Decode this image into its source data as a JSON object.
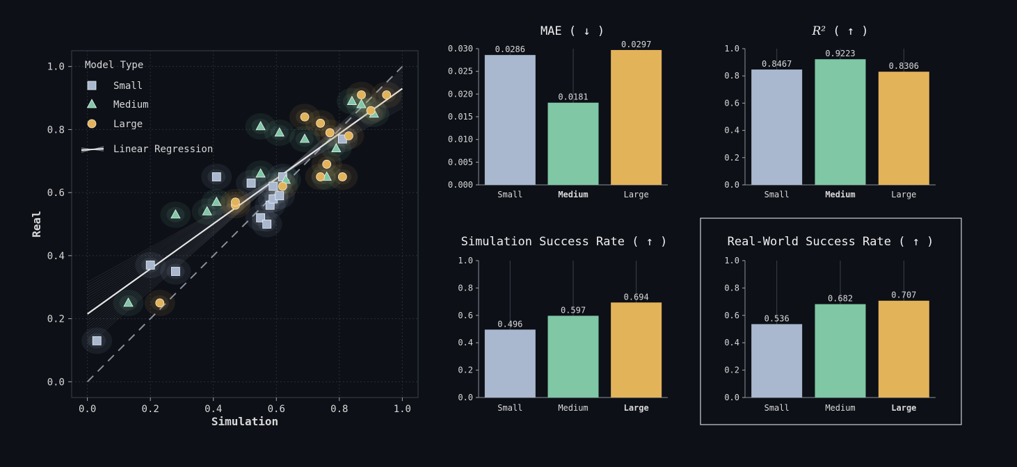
{
  "chart_data": [
    {
      "type": "scatter",
      "xlabel": "Simulation",
      "ylabel": "Real",
      "xlim": [
        -0.05,
        1.05
      ],
      "ylim": [
        -0.05,
        1.05
      ],
      "xticks": [
        "0.0",
        "0.2",
        "0.4",
        "0.6",
        "0.8",
        "1.0"
      ],
      "yticks": [
        "0.0",
        "0.2",
        "0.4",
        "0.6",
        "0.8",
        "1.0"
      ],
      "grid": true,
      "legend_title": "Model Type",
      "legend_position": "top-left",
      "legend": [
        "Small",
        "Medium",
        "Large",
        "Linear Regression"
      ],
      "colors": {
        "Small": "#a9b8cf",
        "Medium": "#7fc7a5",
        "Large": "#e3b35a",
        "line": "#e6e6e6",
        "diagonal": "#8a8f99"
      },
      "series": [
        {
          "name": "Small",
          "marker": "square",
          "points": [
            [
              0.03,
              0.13
            ],
            [
              0.2,
              0.37
            ],
            [
              0.28,
              0.35
            ],
            [
              0.41,
              0.65
            ],
            [
              0.52,
              0.63
            ],
            [
              0.55,
              0.52
            ],
            [
              0.57,
              0.5
            ],
            [
              0.58,
              0.56
            ],
            [
              0.59,
              0.58
            ],
            [
              0.59,
              0.62
            ],
            [
              0.61,
              0.59
            ],
            [
              0.62,
              0.65
            ],
            [
              0.81,
              0.77
            ]
          ]
        },
        {
          "name": "Medium",
          "marker": "triangle",
          "points": [
            [
              0.13,
              0.25
            ],
            [
              0.28,
              0.53
            ],
            [
              0.38,
              0.54
            ],
            [
              0.41,
              0.57
            ],
            [
              0.55,
              0.66
            ],
            [
              0.55,
              0.81
            ],
            [
              0.61,
              0.79
            ],
            [
              0.63,
              0.64
            ],
            [
              0.69,
              0.77
            ],
            [
              0.76,
              0.65
            ],
            [
              0.79,
              0.74
            ],
            [
              0.84,
              0.89
            ],
            [
              0.87,
              0.88
            ],
            [
              0.91,
              0.85
            ]
          ]
        },
        {
          "name": "Large",
          "marker": "circle",
          "points": [
            [
              0.23,
              0.25
            ],
            [
              0.47,
              0.56
            ],
            [
              0.47,
              0.57
            ],
            [
              0.62,
              0.62
            ],
            [
              0.69,
              0.84
            ],
            [
              0.74,
              0.65
            ],
            [
              0.74,
              0.82
            ],
            [
              0.76,
              0.69
            ],
            [
              0.77,
              0.79
            ],
            [
              0.81,
              0.65
            ],
            [
              0.83,
              0.78
            ],
            [
              0.87,
              0.91
            ],
            [
              0.9,
              0.86
            ],
            [
              0.95,
              0.91
            ]
          ]
        }
      ],
      "regression": {
        "x": [
          0.0,
          1.0
        ],
        "y": [
          0.215,
          0.93
        ]
      }
    },
    {
      "type": "bar",
      "title": "MAE ( ↓ )",
      "categories": [
        "Small",
        "Medium",
        "Large"
      ],
      "values": [
        0.0286,
        0.0181,
        0.0297
      ],
      "labels": [
        "0.0286",
        "0.0181",
        "0.0297"
      ],
      "highlight": "Medium",
      "ylim": [
        0,
        0.03
      ],
      "yticks": [
        "0.000",
        "0.005",
        "0.010",
        "0.015",
        "0.020",
        "0.025",
        "0.030"
      ]
    },
    {
      "type": "bar",
      "title": "R² ( ↑ )",
      "categories": [
        "Small",
        "Medium",
        "Large"
      ],
      "values": [
        0.8467,
        0.9223,
        0.8306
      ],
      "labels": [
        "0.8467",
        "0.9223",
        "0.8306"
      ],
      "highlight": "Medium",
      "ylim": [
        0,
        1.0
      ],
      "yticks": [
        "0.0",
        "0.2",
        "0.4",
        "0.6",
        "0.8",
        "1.0"
      ]
    },
    {
      "type": "bar",
      "title": "Simulation Success Rate ( ↑ )",
      "categories": [
        "Small",
        "Medium",
        "Large"
      ],
      "values": [
        0.496,
        0.597,
        0.694
      ],
      "labels": [
        "0.496",
        "0.597",
        "0.694"
      ],
      "highlight": "Large",
      "ylim": [
        0,
        1.0
      ],
      "yticks": [
        "0.0",
        "0.2",
        "0.4",
        "0.6",
        "0.8",
        "1.0"
      ]
    },
    {
      "type": "bar",
      "title": "Real-World Success Rate ( ↑ )",
      "categories": [
        "Small",
        "Medium",
        "Large"
      ],
      "values": [
        0.536,
        0.682,
        0.707
      ],
      "labels": [
        "0.536",
        "0.682",
        "0.707"
      ],
      "highlight": "Large",
      "ylim": [
        0,
        1.0
      ],
      "yticks": [
        "0.0",
        "0.2",
        "0.4",
        "0.6",
        "0.8",
        "1.0"
      ],
      "boxed": true
    }
  ]
}
